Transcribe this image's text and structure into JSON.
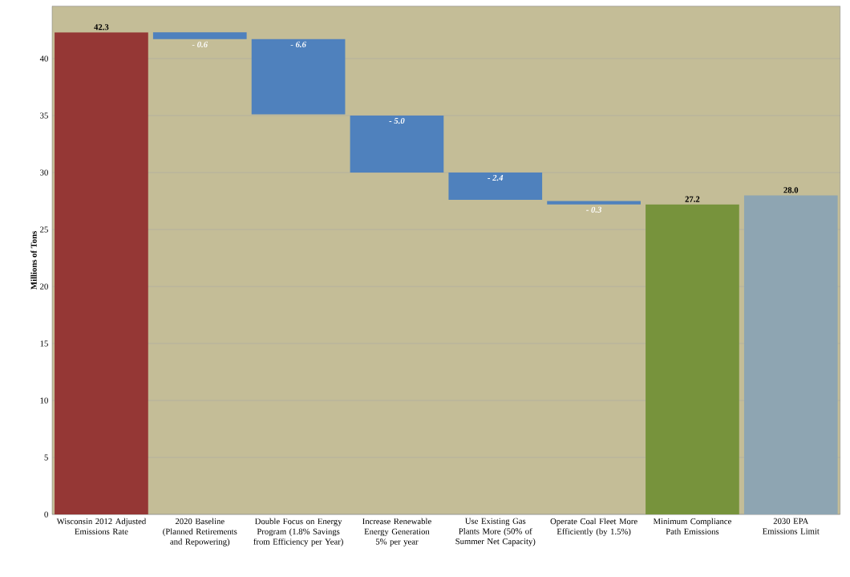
{
  "chart_data": {
    "type": "bar",
    "ylabel": "Millions of Tons",
    "categories": [
      "Wisconsin 2012 Adjusted Emissions Rate",
      "2020 Baseline (Planned Retirements and Repowering)",
      "Double Focus on Energy Program (1.8% Savings from Efficiency per Year)",
      "Increase Renewable Energy Generation 5% per year",
      "Use Existing Gas Plants More (50% of Summer Net Capacity)",
      "Operate Coal Fleet More Efficiently (by 1.5%)",
      "Minimum Compliance Path Emissions",
      "2030 EPA Emissions Limit"
    ],
    "values": [
      42.3,
      -0.6,
      -6.6,
      -5.0,
      -2.4,
      -0.3,
      27.2,
      28.0
    ],
    "base": [
      0,
      42.3,
      41.7,
      35.0,
      30.0,
      27.5,
      0,
      0
    ],
    "value_labels": [
      "42.3",
      "- 0.6",
      "- 6.6",
      "- 5.0",
      "- 2.4",
      "- 0.3",
      "27.2",
      "28.0"
    ],
    "colors": [
      "#953735",
      "#4f81bd",
      "#4f81bd",
      "#4f81bd",
      "#4f81bd",
      "#4f81bd",
      "#77933c",
      "#8ea5b2"
    ],
    "ylim": [
      0,
      44.6
    ],
    "yticks": [
      0,
      5,
      10,
      15,
      20,
      25,
      30,
      35,
      40
    ],
    "grid": "y"
  }
}
